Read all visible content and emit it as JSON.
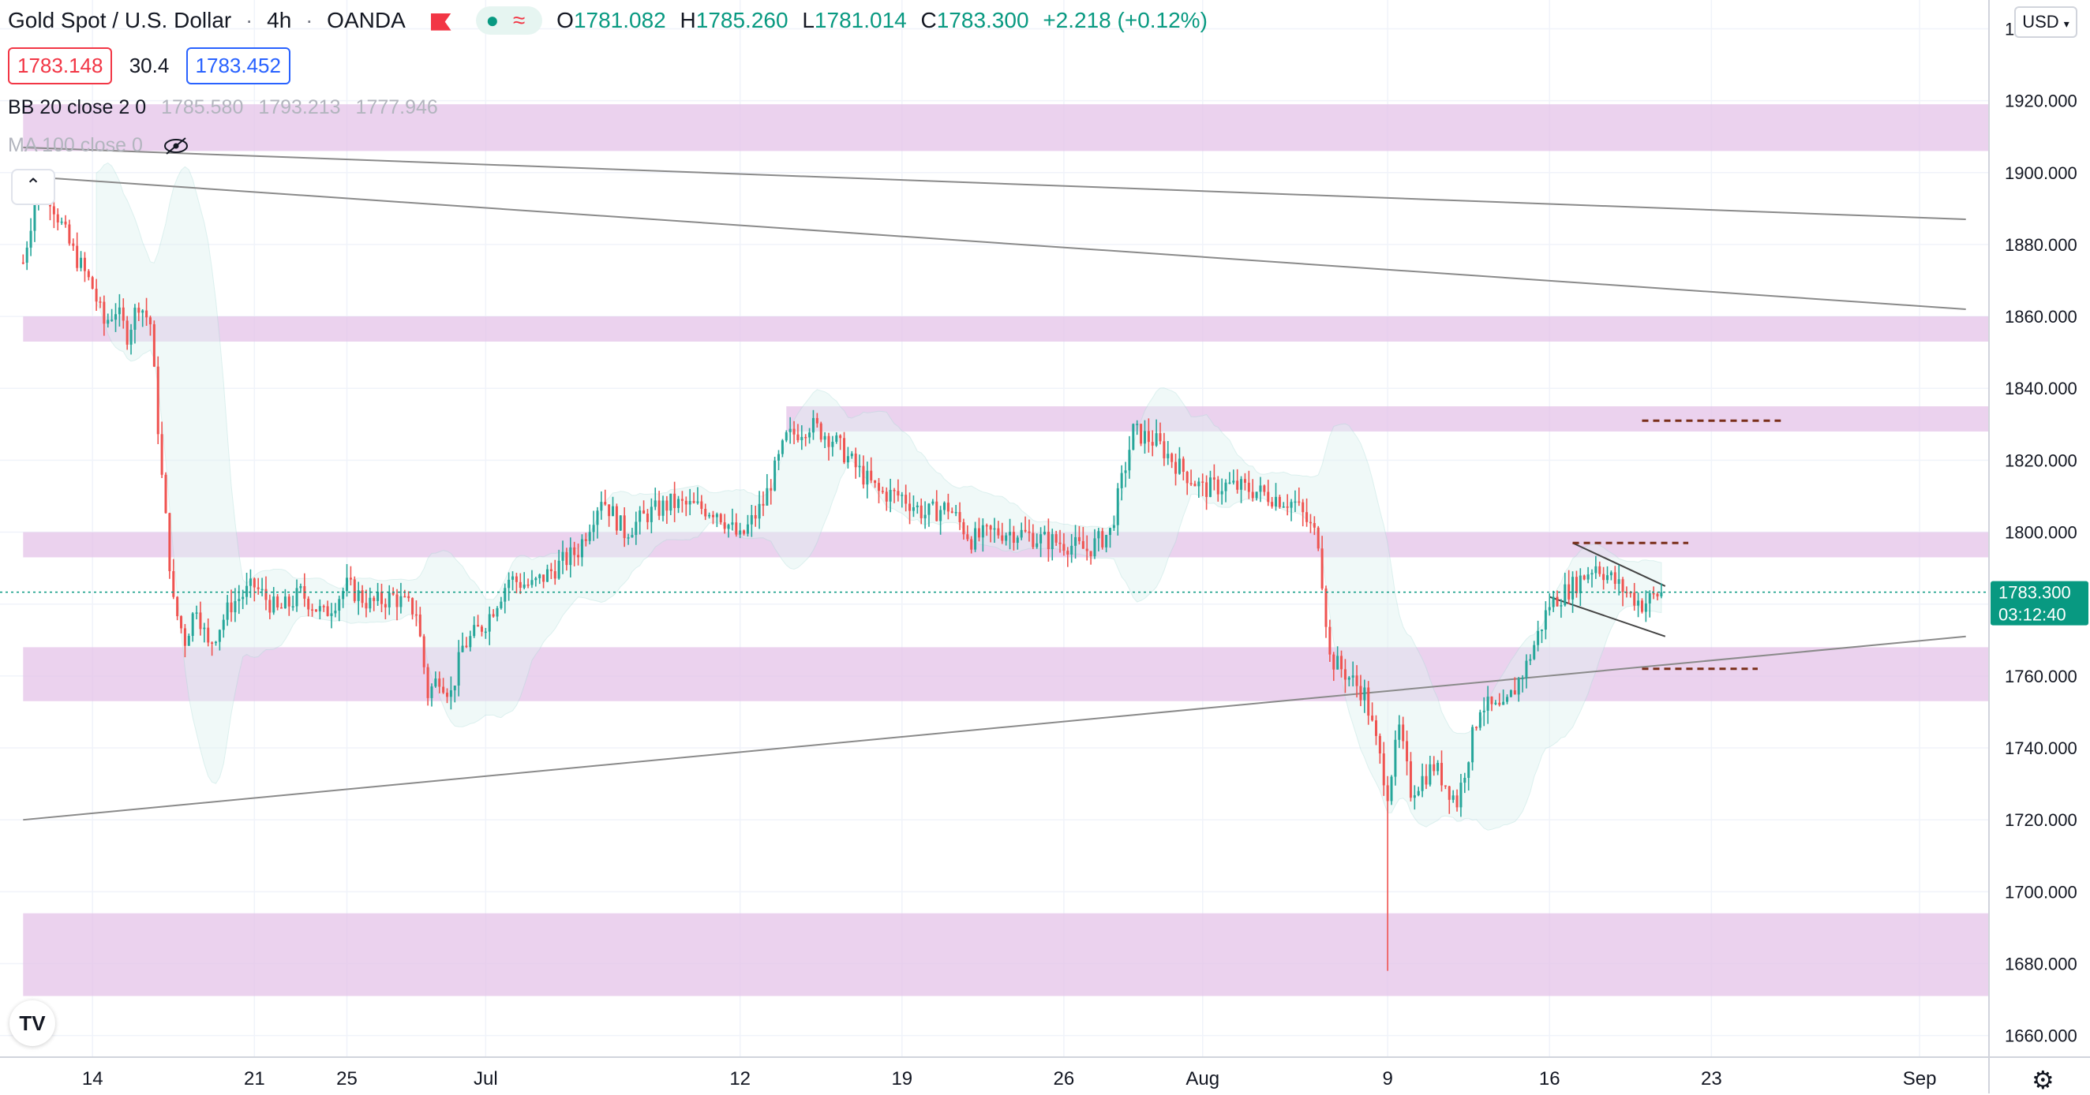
{
  "header": {
    "symbol": "Gold Spot / U.S. Dollar",
    "interval": "4h",
    "broker": "OANDA",
    "ohlc": {
      "open_label": "O",
      "open": "1781.082",
      "high_label": "H",
      "high": "1785.260",
      "low_label": "L",
      "low": "1781.014",
      "close_label": "C",
      "close": "1783.300",
      "change": "+2.218 (+0.12%)"
    },
    "bid": "1783.148",
    "spread": "30.4",
    "ask": "1783.452"
  },
  "indicators": {
    "bb_label": "BB 20 close 2 0",
    "bb_values": [
      "1785.580",
      "1793.213",
      "1777.946"
    ],
    "ma_label": "MA 100 close 0"
  },
  "toolbar": {
    "currency": "USD",
    "collapse_icon": "chevron-up-icon",
    "settings_icon": "gear-icon",
    "logo_text": "TV"
  },
  "price_tag": {
    "price": "1783.300",
    "countdown": "03:12:40"
  },
  "colors": {
    "up": "#26a69a",
    "down": "#ef5350",
    "zone": "#e4c3e8",
    "band": "#e0f2f1",
    "trendline": "#8a8a8a",
    "dashed": "#7a2e1a",
    "price_line": "#089981"
  },
  "chart_data": {
    "type": "candlestick",
    "title": "Gold Spot / U.S. Dollar",
    "interval": "4h",
    "y_axis": {
      "range": [
        1654,
        1948
      ],
      "ticks": [
        1660,
        1680,
        1700,
        1720,
        1740,
        1760,
        1780,
        1800,
        1820,
        1840,
        1860,
        1880,
        1900,
        1920,
        1940
      ],
      "tick_labels": [
        "1660.000",
        "1680.000",
        "1700.000",
        "1720.000",
        "1740.000",
        "1760.000",
        "1780.000",
        "1800.000",
        "1820.000",
        "1840.000",
        "1860.000",
        "1880.000",
        "1900.000",
        "1920.000",
        "1940.000"
      ]
    },
    "x_axis": {
      "ticks": [
        {
          "date": "2021-06-14",
          "label": "14"
        },
        {
          "date": "2021-06-21",
          "label": "21"
        },
        {
          "date": "2021-06-25",
          "label": "25"
        },
        {
          "date": "2021-07-01",
          "label": "Jul"
        },
        {
          "date": "2021-07-12",
          "label": "12"
        },
        {
          "date": "2021-07-19",
          "label": "19"
        },
        {
          "date": "2021-07-26",
          "label": "26"
        },
        {
          "date": "2021-08-01",
          "label": "Aug"
        },
        {
          "date": "2021-08-09",
          "label": "9"
        },
        {
          "date": "2021-08-16",
          "label": "16"
        },
        {
          "date": "2021-08-23",
          "label": "23"
        },
        {
          "date": "2021-09-01",
          "label": "Sep"
        }
      ]
    },
    "price_path": [
      [
        "2021-06-11",
        1875
      ],
      [
        "2021-06-11T12:00",
        1892
      ],
      [
        "2021-06-12",
        1896
      ],
      [
        "2021-06-13",
        1880
      ],
      [
        "2021-06-14",
        1868
      ],
      [
        "2021-06-14T12:00",
        1858
      ],
      [
        "2021-06-15",
        1862
      ],
      [
        "2021-06-15T12:00",
        1855
      ],
      [
        "2021-06-16",
        1864
      ],
      [
        "2021-06-16T12:00",
        1858
      ],
      [
        "2021-06-17",
        1815
      ],
      [
        "2021-06-17T12:00",
        1780
      ],
      [
        "2021-06-18",
        1770
      ],
      [
        "2021-06-18T12:00",
        1780
      ],
      [
        "2021-06-19",
        1768
      ],
      [
        "2021-06-20",
        1780
      ],
      [
        "2021-06-21",
        1785
      ],
      [
        "2021-06-22",
        1778
      ],
      [
        "2021-06-22T12:00",
        1780
      ],
      [
        "2021-06-23",
        1783
      ],
      [
        "2021-06-24",
        1777
      ],
      [
        "2021-06-25",
        1785
      ],
      [
        "2021-06-26",
        1780
      ],
      [
        "2021-06-27",
        1782
      ],
      [
        "2021-06-28",
        1778
      ],
      [
        "2021-06-28T12:00",
        1755
      ],
      [
        "2021-06-29",
        1760
      ],
      [
        "2021-06-29T12:00",
        1755
      ],
      [
        "2021-06-30",
        1768
      ],
      [
        "2021-07-01",
        1775
      ],
      [
        "2021-07-02",
        1787
      ],
      [
        "2021-07-03",
        1785
      ],
      [
        "2021-07-04",
        1790
      ],
      [
        "2021-07-05",
        1795
      ],
      [
        "2021-07-06",
        1810
      ],
      [
        "2021-07-07",
        1800
      ],
      [
        "2021-07-08",
        1805
      ],
      [
        "2021-07-09",
        1808
      ],
      [
        "2021-07-10",
        1807
      ],
      [
        "2021-07-11",
        1806
      ],
      [
        "2021-07-12",
        1798
      ],
      [
        "2021-07-13",
        1808
      ],
      [
        "2021-07-14",
        1826
      ],
      [
        "2021-07-15",
        1830
      ],
      [
        "2021-07-16",
        1826
      ],
      [
        "2021-07-17",
        1818
      ],
      [
        "2021-07-18",
        1811
      ],
      [
        "2021-07-19",
        1810
      ],
      [
        "2021-07-20",
        1805
      ],
      [
        "2021-07-21",
        1807
      ],
      [
        "2021-07-22",
        1798
      ],
      [
        "2021-07-23",
        1800
      ],
      [
        "2021-07-24",
        1800
      ],
      [
        "2021-07-25",
        1798
      ],
      [
        "2021-07-26",
        1797
      ],
      [
        "2021-07-27",
        1795
      ],
      [
        "2021-07-28",
        1800
      ],
      [
        "2021-07-29",
        1828
      ],
      [
        "2021-07-30",
        1825
      ],
      [
        "2021-07-31",
        1818
      ],
      [
        "2021-08-01",
        1812
      ],
      [
        "2021-08-02",
        1813
      ],
      [
        "2021-08-03",
        1812
      ],
      [
        "2021-08-04",
        1810
      ],
      [
        "2021-08-05",
        1808
      ],
      [
        "2021-08-06",
        1798
      ],
      [
        "2021-08-06T12:00",
        1765
      ],
      [
        "2021-08-07",
        1762
      ],
      [
        "2021-08-08",
        1755
      ],
      [
        "2021-08-09",
        1728
      ],
      [
        "2021-08-09T12:00",
        1745
      ],
      [
        "2021-08-10",
        1728
      ],
      [
        "2021-08-11",
        1735
      ],
      [
        "2021-08-12",
        1725
      ],
      [
        "2021-08-13",
        1752
      ],
      [
        "2021-08-14",
        1750
      ],
      [
        "2021-08-15",
        1763
      ],
      [
        "2021-08-16",
        1780
      ],
      [
        "2021-08-17",
        1785
      ],
      [
        "2021-08-18",
        1791
      ],
      [
        "2021-08-19",
        1785
      ],
      [
        "2021-08-20",
        1780
      ],
      [
        "2021-08-20T20:00",
        1783.3
      ]
    ],
    "zones": [
      {
        "from": 1906,
        "to": 1919,
        "start": "2021-06-11"
      },
      {
        "from": 1853,
        "to": 1860,
        "start": "2021-06-11"
      },
      {
        "from": 1828,
        "to": 1835,
        "start": "2021-07-14"
      },
      {
        "from": 1793,
        "to": 1800,
        "start": "2021-06-11"
      },
      {
        "from": 1753,
        "to": 1768,
        "start": "2021-06-11"
      },
      {
        "from": 1671,
        "to": 1694,
        "start": "2021-06-11"
      }
    ],
    "trendlines": [
      {
        "from": [
          "2021-06-11",
          1907
        ],
        "to": [
          "2021-09-03",
          1887
        ]
      },
      {
        "from": [
          "2021-06-11",
          1899
        ],
        "to": [
          "2021-09-03",
          1862
        ]
      },
      {
        "from": [
          "2021-06-11",
          1720
        ],
        "to": [
          "2021-09-03",
          1771
        ]
      }
    ],
    "channel": [
      {
        "from": [
          "2021-08-17",
          1797
        ],
        "to": [
          "2021-08-21",
          1785
        ]
      },
      {
        "from": [
          "2021-08-16",
          1782
        ],
        "to": [
          "2021-08-21",
          1771
        ]
      }
    ],
    "dashed_levels": [
      {
        "price": 1831,
        "from": "2021-08-20",
        "to": "2021-08-26"
      },
      {
        "price": 1797,
        "from": "2021-08-17",
        "to": "2021-08-22"
      },
      {
        "price": 1762,
        "from": "2021-08-20",
        "to": "2021-08-25"
      }
    ],
    "last_price": 1783.3
  }
}
